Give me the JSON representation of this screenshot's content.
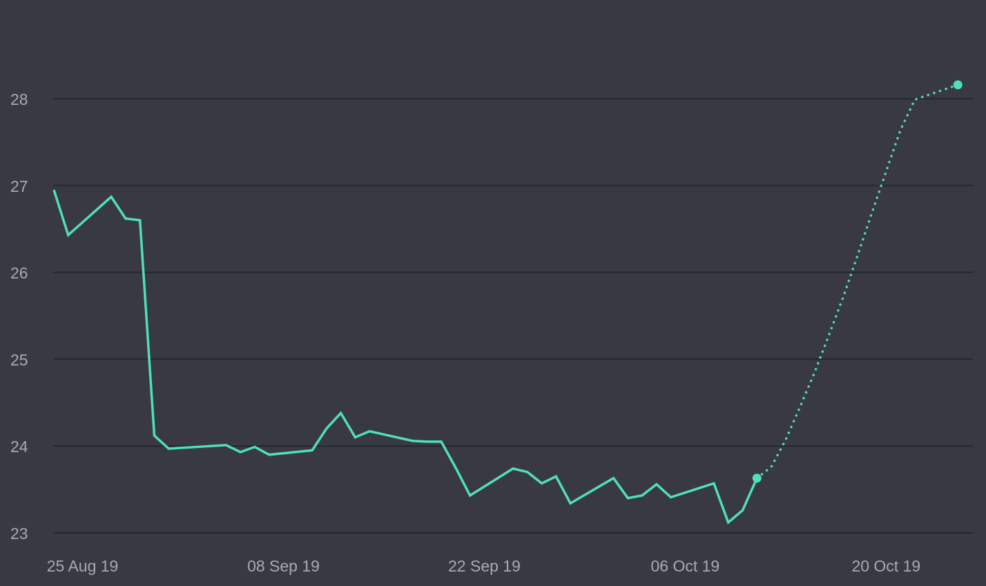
{
  "chart_data": {
    "type": "line",
    "title": "",
    "xlabel": "",
    "ylabel": "",
    "x_range": [
      "2019-08-23",
      "2019-10-26"
    ],
    "ylim": [
      22.9,
      29.0
    ],
    "grid": true,
    "y_ticks": [
      "23",
      "24",
      "25",
      "26",
      "27",
      "28"
    ],
    "x_ticks": [
      {
        "date": "2019-08-25",
        "label": "25 Aug 19"
      },
      {
        "date": "2019-09-08",
        "label": "08 Sep 19"
      },
      {
        "date": "2019-09-22",
        "label": "22 Sep 19"
      },
      {
        "date": "2019-10-06",
        "label": "06 Oct 19"
      },
      {
        "date": "2019-10-20",
        "label": "20 Oct 19"
      }
    ],
    "colors": {
      "line": "#4fe0b8",
      "background": "#393944",
      "grid": "#26262d",
      "tick_text": "#a9a9b2"
    },
    "series": [
      {
        "style": "solid",
        "points": [
          [
            "2019-08-23",
            26.95
          ],
          [
            "2019-08-24",
            26.43
          ],
          [
            "2019-08-27",
            26.87
          ],
          [
            "2019-08-28",
            26.62
          ],
          [
            "2019-08-29",
            26.6
          ],
          [
            "2019-08-30",
            24.12
          ],
          [
            "2019-08-31",
            23.97
          ],
          [
            "2019-09-04",
            24.01
          ],
          [
            "2019-09-05",
            23.93
          ],
          [
            "2019-09-06",
            23.99
          ],
          [
            "2019-09-07",
            23.9
          ],
          [
            "2019-09-10",
            23.95
          ],
          [
            "2019-09-11",
            24.2
          ],
          [
            "2019-09-12",
            24.38
          ],
          [
            "2019-09-13",
            24.1
          ],
          [
            "2019-09-14",
            24.17
          ],
          [
            "2019-09-17",
            24.06
          ],
          [
            "2019-09-18",
            24.05
          ],
          [
            "2019-09-19",
            24.05
          ],
          [
            "2019-09-20",
            23.75
          ],
          [
            "2019-09-21",
            23.43
          ],
          [
            "2019-09-24",
            23.74
          ],
          [
            "2019-09-25",
            23.7
          ],
          [
            "2019-09-26",
            23.57
          ],
          [
            "2019-09-27",
            23.65
          ],
          [
            "2019-09-28",
            23.34
          ],
          [
            "2019-10-01",
            23.63
          ],
          [
            "2019-10-02",
            23.4
          ],
          [
            "2019-10-03",
            23.43
          ],
          [
            "2019-10-04",
            23.56
          ],
          [
            "2019-10-05",
            23.41
          ],
          [
            "2019-10-08",
            23.57
          ],
          [
            "2019-10-09",
            23.12
          ],
          [
            "2019-10-10",
            23.26
          ],
          [
            "2019-10-11",
            23.63
          ]
        ]
      },
      {
        "style": "dotted",
        "points": [
          [
            "2019-10-11",
            23.63
          ],
          [
            "2019-10-12",
            23.76
          ],
          [
            "2019-10-13",
            24.07
          ],
          [
            "2019-10-14",
            24.45
          ],
          [
            "2019-10-15",
            24.84
          ],
          [
            "2019-10-16",
            25.27
          ],
          [
            "2019-10-17",
            25.71
          ],
          [
            "2019-10-18",
            26.19
          ],
          [
            "2019-10-19",
            26.68
          ],
          [
            "2019-10-20",
            27.16
          ],
          [
            "2019-10-21",
            27.64
          ],
          [
            "2019-10-22",
            27.99
          ],
          [
            "2019-10-25",
            28.16
          ]
        ]
      }
    ]
  }
}
